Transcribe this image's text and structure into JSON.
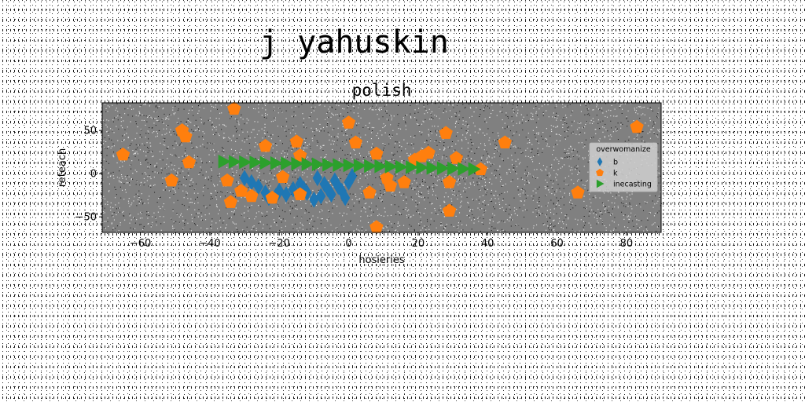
{
  "figure": {
    "suptitle": "j yahuskin"
  },
  "chart_data": {
    "type": "scatter",
    "title": "polish",
    "xlabel": "hosieries",
    "ylabel": "reteach",
    "xlim": [
      -71,
      90
    ],
    "ylim": [
      -68,
      82
    ],
    "xticks": [
      -60,
      -40,
      -20,
      0,
      20,
      40,
      60,
      80
    ],
    "yticks": [
      -50,
      0,
      50
    ],
    "grid": false,
    "axes_facecolor": "#808080",
    "legend": {
      "title": "overwomanize",
      "placement": "center-right"
    },
    "series": [
      {
        "name": "b",
        "marker": "thin-diamond",
        "color": "#1f77b4",
        "points": [
          [
            -30,
            -5
          ],
          [
            -28,
            -10
          ],
          [
            -26,
            -15
          ],
          [
            -24,
            -22
          ],
          [
            -23,
            -28
          ],
          [
            -21,
            -26
          ],
          [
            -20,
            -20
          ],
          [
            -18,
            -24
          ],
          [
            -16,
            -18
          ],
          [
            -14,
            -12
          ],
          [
            -13,
            -17
          ],
          [
            -12,
            -22
          ],
          [
            -10,
            -30
          ],
          [
            -9,
            -5
          ],
          [
            -8,
            -26
          ],
          [
            -7,
            -12
          ],
          [
            -6,
            -18
          ],
          [
            -5,
            -24
          ],
          [
            -4,
            -8
          ],
          [
            -3,
            -15
          ],
          [
            -2,
            -20
          ],
          [
            -1,
            -28
          ],
          [
            0,
            -10
          ],
          [
            1,
            -3
          ]
        ]
      },
      {
        "name": "k",
        "marker": "pentagon",
        "color": "#ff7f0e",
        "points": [
          [
            -65,
            22
          ],
          [
            -51,
            -8
          ],
          [
            -48,
            50
          ],
          [
            -47,
            43
          ],
          [
            -46,
            13
          ],
          [
            -35,
            -8
          ],
          [
            -34,
            -33
          ],
          [
            -33,
            75
          ],
          [
            -31,
            -20
          ],
          [
            -28,
            -26
          ],
          [
            -24,
            32
          ],
          [
            -22,
            -28
          ],
          [
            -19,
            -4
          ],
          [
            -15,
            37
          ],
          [
            -14,
            21
          ],
          [
            -14,
            -24
          ],
          [
            0,
            59
          ],
          [
            2,
            36
          ],
          [
            6,
            -22
          ],
          [
            8,
            23
          ],
          [
            8,
            -62
          ],
          [
            11,
            -5
          ],
          [
            12,
            -14
          ],
          [
            16,
            -10
          ],
          [
            19,
            16
          ],
          [
            21,
            20
          ],
          [
            23,
            24
          ],
          [
            28,
            47
          ],
          [
            29,
            -10
          ],
          [
            29,
            -43
          ],
          [
            31,
            18
          ],
          [
            38,
            5
          ],
          [
            45,
            36
          ],
          [
            66,
            -22
          ],
          [
            83,
            54
          ]
        ]
      },
      {
        "name": "inecasting",
        "marker": "triangle-right",
        "color": "#2ca02c",
        "points": [
          [
            -36,
            14
          ],
          [
            -33,
            13.7
          ],
          [
            -30,
            13.3
          ],
          [
            -27,
            13
          ],
          [
            -24,
            12.6
          ],
          [
            -21,
            12.2
          ],
          [
            -18,
            11.9
          ],
          [
            -15,
            11.5
          ],
          [
            -12,
            11.1
          ],
          [
            -9,
            10.8
          ],
          [
            -6,
            10.4
          ],
          [
            -3,
            10
          ],
          [
            0,
            9.7
          ],
          [
            3,
            9.3
          ],
          [
            6,
            8.9
          ],
          [
            9,
            8.6
          ],
          [
            12,
            8.2
          ],
          [
            15,
            7.8
          ],
          [
            18,
            7.5
          ],
          [
            21,
            7.1
          ],
          [
            24,
            6.7
          ],
          [
            27,
            6.4
          ],
          [
            30,
            6
          ],
          [
            33,
            5.6
          ],
          [
            36,
            5.3
          ]
        ]
      }
    ]
  }
}
